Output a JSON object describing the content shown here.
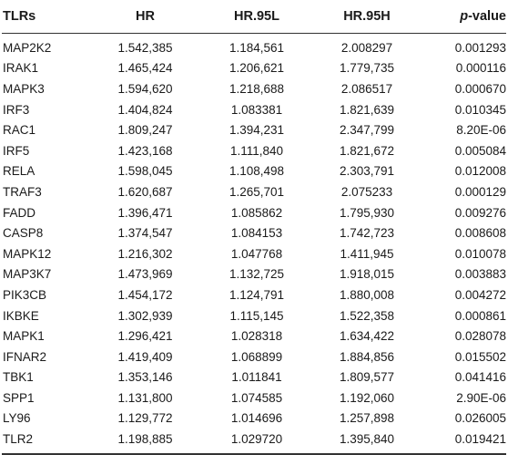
{
  "table": {
    "headers": [
      "TLRs",
      "HR",
      "HR.95L",
      "HR.95H",
      "-value"
    ],
    "p_prefix": "p",
    "rows": [
      [
        "MAP2K2",
        "1.542,385",
        "1.184,561",
        "2.008297",
        "0.001293"
      ],
      [
        "IRAK1",
        "1.465,424",
        "1.206,621",
        "1.779,735",
        "0.000116"
      ],
      [
        "MAPK3",
        "1.594,620",
        "1.218,688",
        "2.086517",
        "0.000670"
      ],
      [
        "IRF3",
        "1.404,824",
        "1.083381",
        "1.821,639",
        "0.010345"
      ],
      [
        "RAC1",
        "1.809,247",
        "1.394,231",
        "2.347,799",
        "8.20E-06"
      ],
      [
        "IRF5",
        "1.423,168",
        "1.111,840",
        "1.821,672",
        "0.005084"
      ],
      [
        "RELA",
        "1.598,045",
        "1.108,498",
        "2.303,791",
        "0.012008"
      ],
      [
        "TRAF3",
        "1.620,687",
        "1.265,701",
        "2.075233",
        "0.000129"
      ],
      [
        "FADD",
        "1.396,471",
        "1.085862",
        "1.795,930",
        "0.009276"
      ],
      [
        "CASP8",
        "1.374,547",
        "1.084153",
        "1.742,723",
        "0.008608"
      ],
      [
        "MAPK12",
        "1.216,302",
        "1.047768",
        "1.411,945",
        "0.010078"
      ],
      [
        "MAP3K7",
        "1.473,969",
        "1.132,725",
        "1.918,015",
        "0.003883"
      ],
      [
        "PIK3CB",
        "1.454,172",
        "1.124,791",
        "1.880,008",
        "0.004272"
      ],
      [
        "IKBKE",
        "1.302,939",
        "1.115,145",
        "1.522,358",
        "0.000861"
      ],
      [
        "MAPK1",
        "1.296,421",
        "1.028318",
        "1.634,422",
        "0.028078"
      ],
      [
        "IFNAR2",
        "1.419,409",
        "1.068899",
        "1.884,856",
        "0.015502"
      ],
      [
        "TBK1",
        "1.353,146",
        "1.011841",
        "1.809,577",
        "0.041416"
      ],
      [
        "SPP1",
        "1.131,800",
        "1.074585",
        "1.192,060",
        "2.90E-06"
      ],
      [
        "LY96",
        "1.129,772",
        "1.014696",
        "1.257,898",
        "0.026005"
      ],
      [
        "TLR2",
        "1.198,885",
        "1.029720",
        "1.395,840",
        "0.019421"
      ]
    ]
  }
}
